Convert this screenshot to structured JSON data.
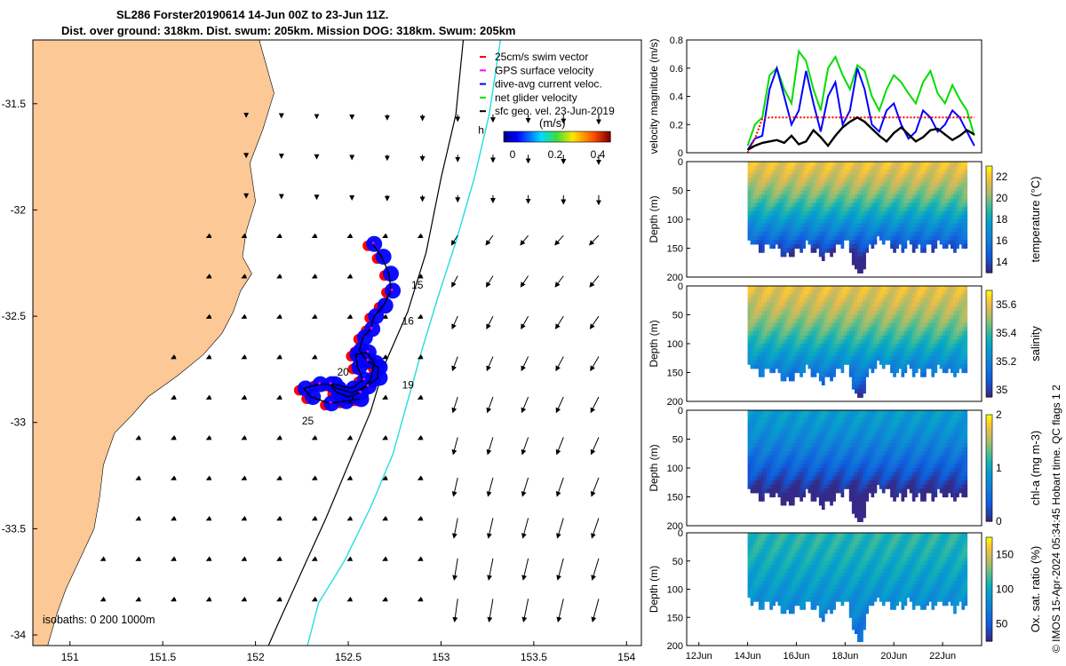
{
  "title": {
    "line1": "SL286 Forster20190614 14-Jun 00Z to 23-Jun 11Z.",
    "line2": "Dist. over ground: 318km. Dist. swum: 205km. Mission DOG: 318km. Swum: 205km"
  },
  "side_text": "© IMOS 15-Apr-2024 05:34:45 Hobart time. QC flags 1  2",
  "colors": {
    "land": "#fbc896",
    "gps": "#ff00ff",
    "swim": "#ff0000",
    "dive": "#0000ff",
    "net": "#00dd00",
    "isobath200": "#000000",
    "isobath1000": "#22dddd"
  },
  "chart_data": [
    {
      "type": "map",
      "x_ticks": [
        "151",
        "151.5",
        "152",
        "152.5",
        "153",
        "153.5",
        "154"
      ],
      "y_ticks": [
        "-31.5",
        "-32",
        "-32.5",
        "-33",
        "-33.5",
        "-34"
      ],
      "xlim": [
        150.8,
        154.08
      ],
      "ylim": [
        -34.05,
        -31.2
      ],
      "legend": [
        "25cm/s swim vector",
        "GPS surface velocity",
        "dive-avg current veloc.",
        "net glider velocity",
        "sfc geo. vel. 23-Jun-2019"
      ],
      "colorbar": {
        "label": "(m/s)",
        "ticks": [
          "0",
          "0.2",
          "0.4"
        ],
        "range": [
          0,
          0.5
        ]
      },
      "isobath_label": "isobaths: 0   200  1000m",
      "day_labels": [
        {
          "text": "15",
          "lon": 152.84,
          "lat": -32.37
        },
        {
          "text": "16",
          "lon": 152.79,
          "lat": -32.54
        },
        {
          "text": "19",
          "lon": 152.79,
          "lat": -32.84
        },
        {
          "text": "25",
          "lon": 152.25,
          "lat": -33.01
        }
      ],
      "mark_labels": [
        {
          "text": "20",
          "lon": 152.44,
          "lat": -32.78
        },
        {
          "text": "2",
          "lon": 152.5,
          "lat": -32.91
        },
        {
          "text": "h",
          "lon": 153.2,
          "lat": -31.64
        }
      ],
      "track": [
        [
          152.63,
          -32.16
        ],
        [
          152.68,
          -32.22
        ],
        [
          152.72,
          -32.3
        ],
        [
          152.73,
          -32.38
        ],
        [
          152.69,
          -32.45
        ],
        [
          152.64,
          -32.5
        ],
        [
          152.62,
          -32.56
        ],
        [
          152.58,
          -32.6
        ],
        [
          152.56,
          -32.66
        ],
        [
          152.6,
          -32.71
        ],
        [
          152.66,
          -32.74
        ],
        [
          152.66,
          -32.79
        ],
        [
          152.6,
          -32.83
        ],
        [
          152.52,
          -32.86
        ],
        [
          152.44,
          -32.84
        ],
        [
          152.4,
          -32.82
        ],
        [
          152.44,
          -32.86
        ],
        [
          152.5,
          -32.88
        ],
        [
          152.56,
          -32.86
        ],
        [
          152.62,
          -32.8
        ],
        [
          152.64,
          -32.72
        ],
        [
          152.6,
          -32.67
        ],
        [
          152.54,
          -32.68
        ],
        [
          152.55,
          -32.74
        ],
        [
          152.58,
          -32.8
        ],
        [
          152.52,
          -32.84
        ],
        [
          152.42,
          -32.82
        ],
        [
          152.34,
          -32.82
        ],
        [
          152.26,
          -32.84
        ],
        [
          152.3,
          -32.88
        ],
        [
          152.4,
          -32.91
        ],
        [
          152.48,
          -32.9
        ],
        [
          152.56,
          -32.89
        ]
      ],
      "isobath_200": [
        [
          153.12,
          -31.2
        ],
        [
          153.08,
          -31.55
        ],
        [
          153.0,
          -31.85
        ],
        [
          152.92,
          -32.2
        ],
        [
          152.82,
          -32.48
        ],
        [
          152.7,
          -32.72
        ],
        [
          152.62,
          -32.95
        ],
        [
          152.5,
          -33.2
        ],
        [
          152.38,
          -33.45
        ],
        [
          152.25,
          -33.7
        ],
        [
          152.12,
          -33.95
        ],
        [
          152.07,
          -34.05
        ]
      ],
      "isobath_1000": [
        [
          153.32,
          -31.2
        ],
        [
          153.26,
          -31.55
        ],
        [
          153.18,
          -31.85
        ],
        [
          153.08,
          -32.15
        ],
        [
          152.98,
          -32.42
        ],
        [
          152.9,
          -32.65
        ],
        [
          152.82,
          -32.9
        ],
        [
          152.74,
          -33.15
        ],
        [
          152.62,
          -33.4
        ],
        [
          152.48,
          -33.65
        ],
        [
          152.34,
          -33.85
        ],
        [
          152.28,
          -34.05
        ]
      ]
    },
    {
      "type": "line",
      "ylabel": "velocity magnitude (m/s)",
      "ylim": [
        0,
        0.8
      ],
      "y_ticks": [
        "0",
        "0.2",
        "0.4",
        "0.6",
        "0.8"
      ],
      "x": [
        14.0,
        14.3,
        14.6,
        14.9,
        15.2,
        15.5,
        15.8,
        16.1,
        16.4,
        16.7,
        17.0,
        17.3,
        17.6,
        17.9,
        18.2,
        18.5,
        18.8,
        19.1,
        19.4,
        19.7,
        20.0,
        20.3,
        20.6,
        20.9,
        21.2,
        21.5,
        21.8,
        22.1,
        22.4,
        22.7,
        23.0,
        23.3
      ],
      "series": [
        {
          "name": "net glider velocity",
          "color": "#00dd00",
          "values": [
            0.05,
            0.2,
            0.25,
            0.55,
            0.6,
            0.45,
            0.35,
            0.72,
            0.65,
            0.45,
            0.3,
            0.6,
            0.68,
            0.55,
            0.45,
            0.62,
            0.58,
            0.4,
            0.3,
            0.45,
            0.55,
            0.5,
            0.42,
            0.35,
            0.5,
            0.58,
            0.42,
            0.35,
            0.48,
            0.38,
            0.3,
            0.12
          ]
        },
        {
          "name": "dive-avg current veloc.",
          "color": "#0000ff",
          "values": [
            0.02,
            0.1,
            0.12,
            0.45,
            0.6,
            0.4,
            0.2,
            0.3,
            0.58,
            0.35,
            0.15,
            0.4,
            0.5,
            0.2,
            0.3,
            0.6,
            0.45,
            0.2,
            0.15,
            0.3,
            0.35,
            0.2,
            0.1,
            0.15,
            0.3,
            0.25,
            0.15,
            0.2,
            0.3,
            0.25,
            0.15,
            0.05
          ]
        },
        {
          "name": "25cm/s swim vector",
          "color": "#ff0000",
          "dashed": true,
          "values": [
            0.0,
            0.1,
            0.24,
            0.25,
            0.25,
            0.25,
            0.25,
            0.25,
            0.25,
            0.25,
            0.25,
            0.25,
            0.25,
            0.25,
            0.25,
            0.25,
            0.25,
            0.25,
            0.25,
            0.25,
            0.25,
            0.25,
            0.25,
            0.25,
            0.25,
            0.25,
            0.25,
            0.25,
            0.25,
            0.25,
            0.25,
            0.25
          ]
        },
        {
          "name": "sfc geo. vel.",
          "color": "#000000",
          "values": [
            0.02,
            0.05,
            0.07,
            0.08,
            0.09,
            0.07,
            0.12,
            0.06,
            0.08,
            0.16,
            0.11,
            0.05,
            0.12,
            0.18,
            0.22,
            0.25,
            0.22,
            0.17,
            0.12,
            0.08,
            0.14,
            0.18,
            0.13,
            0.08,
            0.11,
            0.16,
            0.17,
            0.13,
            0.09,
            0.12,
            0.16,
            0.13
          ]
        }
      ]
    },
    {
      "type": "heatmap",
      "ylabel": "Depth (m)",
      "clabel": "temperature (°C)",
      "ylim": [
        0,
        200
      ],
      "y_ticks": [
        "0",
        "50",
        "100",
        "150",
        "200"
      ],
      "cbar_ticks": [
        "14",
        "16",
        "18",
        "20",
        "22"
      ],
      "crange": [
        13,
        23
      ],
      "cmap": "parula",
      "x": [
        14.0,
        14.5,
        15.0,
        15.5,
        16.0,
        16.5,
        17.0,
        17.5,
        18.0,
        18.5,
        19.0,
        19.5,
        20.0,
        20.5,
        21.0,
        21.5,
        22.0,
        22.5,
        23.0
      ],
      "bottom_depth": [
        130,
        150,
        140,
        160,
        150,
        140,
        165,
        150,
        130,
        200,
        140,
        130,
        150,
        140,
        150,
        145,
        140,
        150,
        140
      ],
      "surface_value": 21.8,
      "deep_value": 15.5
    },
    {
      "type": "heatmap",
      "ylabel": "Depth (m)",
      "clabel": "salinity",
      "ylim": [
        0,
        200
      ],
      "y_ticks": [
        "0",
        "50",
        "100",
        "150",
        "200"
      ],
      "cbar_ticks": [
        "35",
        "35.2",
        "35.4",
        "35.6"
      ],
      "crange": [
        34.95,
        35.7
      ],
      "cmap": "parula",
      "x": [
        14.0,
        14.5,
        15.0,
        15.5,
        16.0,
        16.5,
        17.0,
        17.5,
        18.0,
        18.5,
        19.0,
        19.5,
        20.0,
        20.5,
        21.0,
        21.5,
        22.0,
        22.5,
        23.0
      ],
      "bottom_depth": [
        130,
        150,
        140,
        160,
        150,
        140,
        165,
        150,
        130,
        200,
        140,
        130,
        150,
        140,
        150,
        145,
        140,
        150,
        140
      ],
      "surface_value": 35.6,
      "deep_value": 35.25
    },
    {
      "type": "heatmap",
      "ylabel": "Depth (m)",
      "clabel": "chl-a (mg m-3)",
      "ylim": [
        0,
        200
      ],
      "y_ticks": [
        "0",
        "50",
        "100",
        "150",
        "200"
      ],
      "cbar_ticks": [
        "0",
        "1",
        "2"
      ],
      "crange": [
        0,
        2
      ],
      "cmap": "parula",
      "x": [
        14.0,
        14.5,
        15.0,
        15.5,
        16.0,
        16.5,
        17.0,
        17.5,
        18.0,
        18.5,
        19.0,
        19.5,
        20.0,
        20.5,
        21.0,
        21.5,
        22.0,
        22.5,
        23.0
      ],
      "bottom_depth": [
        130,
        150,
        140,
        160,
        150,
        140,
        165,
        150,
        130,
        200,
        140,
        130,
        150,
        140,
        150,
        145,
        140,
        150,
        140
      ],
      "surface_value": 0.9,
      "deep_value": 0.1
    },
    {
      "type": "heatmap",
      "ylabel": "Depth (m)",
      "clabel": "Ox. sat. ratio (%)",
      "ylim": [
        0,
        200
      ],
      "y_ticks": [
        "0",
        "50",
        "100",
        "150",
        "200"
      ],
      "cbar_ticks": [
        "50",
        "100",
        "150"
      ],
      "crange": [
        25,
        175
      ],
      "cmap": "parula",
      "x": [
        14.0,
        14.5,
        15.0,
        15.5,
        16.0,
        16.5,
        17.0,
        17.5,
        18.0,
        18.5,
        19.0,
        19.5,
        20.0,
        20.5,
        21.0,
        21.5,
        22.0,
        22.5,
        23.0
      ],
      "bottom_depth": [
        110,
        130,
        120,
        140,
        130,
        120,
        145,
        130,
        115,
        200,
        120,
        115,
        130,
        120,
        130,
        125,
        120,
        130,
        120
      ],
      "surface_value": 110,
      "deep_value": 80
    }
  ],
  "time_axis": {
    "ticks": [
      "12Jun",
      "14Jun",
      "16Jun",
      "18Jun",
      "20Jun",
      "22Jun"
    ],
    "values": [
      12,
      14,
      16,
      18,
      20,
      22
    ],
    "xlim": [
      11.5,
      23.6
    ]
  }
}
